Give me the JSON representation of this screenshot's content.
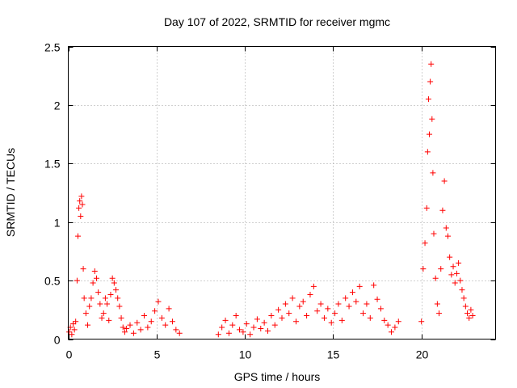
{
  "chart_data": {
    "type": "scatter",
    "title": "Day 107 of 2022, SRMTID for receiver mgmc",
    "xlabel": "GPS time / hours",
    "ylabel": "SRMTID / TECUs",
    "xlim": [
      0,
      24.2
    ],
    "ylim": [
      0,
      2.5
    ],
    "grid": true,
    "x_ticks": [
      0,
      5,
      10,
      15,
      20
    ],
    "y_ticks": [
      0,
      0.5,
      1,
      1.5,
      2,
      2.5
    ],
    "x_tick_labels": [
      "0",
      "5",
      "10",
      "15",
      "20"
    ],
    "y_tick_labels": [
      "0",
      "0.5",
      "1",
      "1.5",
      "2",
      "2.5"
    ],
    "marker": "plus",
    "marker_color": "#ff0000",
    "series": [
      {
        "name": "SRMTID",
        "points": [
          [
            0.05,
            0.06
          ],
          [
            0.12,
            0.1
          ],
          [
            0.2,
            0.04
          ],
          [
            0.28,
            0.13
          ],
          [
            0.35,
            0.08
          ],
          [
            0.42,
            0.15
          ],
          [
            0.5,
            0.5
          ],
          [
            0.55,
            0.88
          ],
          [
            0.6,
            1.12
          ],
          [
            0.65,
            1.18
          ],
          [
            0.7,
            1.05
          ],
          [
            0.75,
            1.22
          ],
          [
            0.8,
            1.15
          ],
          [
            0.85,
            0.6
          ],
          [
            0.9,
            0.35
          ],
          [
            1.0,
            0.22
          ],
          [
            1.1,
            0.12
          ],
          [
            1.2,
            0.28
          ],
          [
            1.3,
            0.35
          ],
          [
            1.4,
            0.48
          ],
          [
            1.5,
            0.58
          ],
          [
            1.6,
            0.52
          ],
          [
            1.7,
            0.4
          ],
          [
            1.8,
            0.3
          ],
          [
            1.9,
            0.18
          ],
          [
            2.0,
            0.22
          ],
          [
            2.1,
            0.35
          ],
          [
            2.2,
            0.3
          ],
          [
            2.3,
            0.16
          ],
          [
            2.4,
            0.38
          ],
          [
            2.5,
            0.52
          ],
          [
            2.6,
            0.48
          ],
          [
            2.7,
            0.42
          ],
          [
            2.8,
            0.35
          ],
          [
            2.9,
            0.28
          ],
          [
            3.0,
            0.18
          ],
          [
            3.1,
            0.1
          ],
          [
            3.2,
            0.06
          ],
          [
            3.3,
            0.09
          ],
          [
            3.5,
            0.12
          ],
          [
            3.7,
            0.05
          ],
          [
            3.9,
            0.14
          ],
          [
            4.1,
            0.08
          ],
          [
            4.3,
            0.2
          ],
          [
            4.5,
            0.1
          ],
          [
            4.7,
            0.15
          ],
          [
            4.9,
            0.24
          ],
          [
            5.1,
            0.32
          ],
          [
            5.3,
            0.18
          ],
          [
            5.5,
            0.12
          ],
          [
            5.7,
            0.26
          ],
          [
            5.9,
            0.15
          ],
          [
            6.1,
            0.08
          ],
          [
            6.3,
            0.05
          ],
          [
            8.5,
            0.04
          ],
          [
            8.7,
            0.1
          ],
          [
            8.9,
            0.16
          ],
          [
            9.1,
            0.05
          ],
          [
            9.3,
            0.12
          ],
          [
            9.5,
            0.2
          ],
          [
            9.7,
            0.08
          ],
          [
            9.9,
            0.06
          ],
          [
            10.1,
            0.13
          ],
          [
            10.3,
            0.04
          ],
          [
            10.5,
            0.1
          ],
          [
            10.7,
            0.17
          ],
          [
            10.9,
            0.09
          ],
          [
            11.1,
            0.14
          ],
          [
            11.3,
            0.07
          ],
          [
            11.5,
            0.2
          ],
          [
            11.7,
            0.12
          ],
          [
            11.9,
            0.25
          ],
          [
            12.1,
            0.18
          ],
          [
            12.3,
            0.3
          ],
          [
            12.5,
            0.22
          ],
          [
            12.7,
            0.35
          ],
          [
            12.9,
            0.15
          ],
          [
            13.1,
            0.28
          ],
          [
            13.3,
            0.32
          ],
          [
            13.5,
            0.2
          ],
          [
            13.7,
            0.38
          ],
          [
            13.9,
            0.45
          ],
          [
            14.1,
            0.24
          ],
          [
            14.3,
            0.3
          ],
          [
            14.5,
            0.18
          ],
          [
            14.7,
            0.26
          ],
          [
            14.9,
            0.14
          ],
          [
            15.1,
            0.22
          ],
          [
            15.3,
            0.3
          ],
          [
            15.5,
            0.16
          ],
          [
            15.7,
            0.35
          ],
          [
            15.9,
            0.28
          ],
          [
            16.1,
            0.4
          ],
          [
            16.3,
            0.32
          ],
          [
            16.5,
            0.45
          ],
          [
            16.7,
            0.22
          ],
          [
            16.9,
            0.3
          ],
          [
            17.1,
            0.18
          ],
          [
            17.3,
            0.46
          ],
          [
            17.5,
            0.34
          ],
          [
            17.7,
            0.26
          ],
          [
            17.9,
            0.16
          ],
          [
            18.1,
            0.12
          ],
          [
            18.3,
            0.06
          ],
          [
            18.5,
            0.1
          ],
          [
            18.7,
            0.15
          ],
          [
            20.0,
            0.15
          ],
          [
            20.1,
            0.6
          ],
          [
            20.2,
            0.82
          ],
          [
            20.3,
            1.12
          ],
          [
            20.35,
            1.6
          ],
          [
            20.4,
            2.05
          ],
          [
            20.45,
            1.75
          ],
          [
            20.5,
            2.2
          ],
          [
            20.55,
            2.35
          ],
          [
            20.6,
            1.88
          ],
          [
            20.65,
            1.42
          ],
          [
            20.7,
            0.9
          ],
          [
            20.8,
            0.52
          ],
          [
            20.9,
            0.3
          ],
          [
            21.0,
            0.22
          ],
          [
            21.1,
            0.6
          ],
          [
            21.2,
            1.1
          ],
          [
            21.3,
            1.35
          ],
          [
            21.4,
            0.95
          ],
          [
            21.5,
            0.88
          ],
          [
            21.6,
            0.7
          ],
          [
            21.7,
            0.55
          ],
          [
            21.8,
            0.62
          ],
          [
            21.9,
            0.48
          ],
          [
            22.0,
            0.56
          ],
          [
            22.1,
            0.65
          ],
          [
            22.2,
            0.5
          ],
          [
            22.3,
            0.42
          ],
          [
            22.4,
            0.35
          ],
          [
            22.5,
            0.28
          ],
          [
            22.6,
            0.22
          ],
          [
            22.7,
            0.18
          ],
          [
            22.8,
            0.25
          ],
          [
            22.9,
            0.2
          ]
        ]
      }
    ]
  }
}
